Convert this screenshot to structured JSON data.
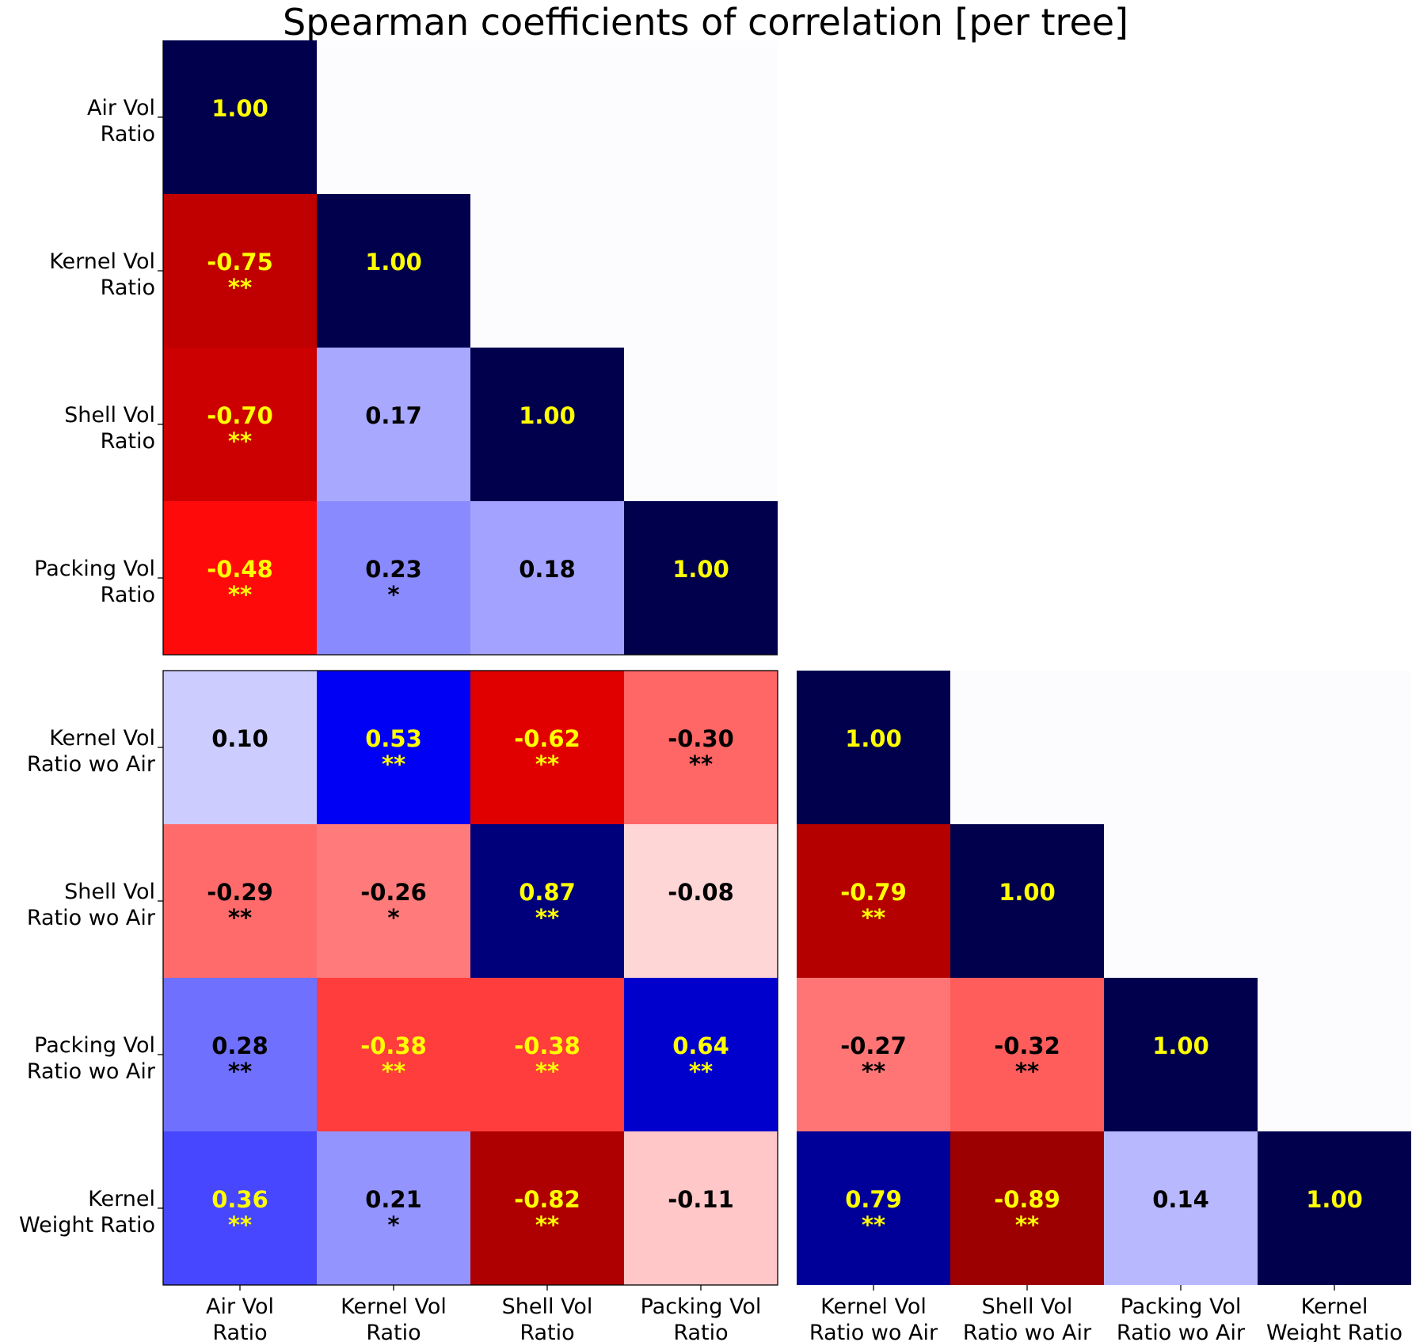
{
  "chart_data": {
    "type": "heatmap",
    "title": "Spearman coefficients of correlation [per tree]",
    "colormap": "seismic_r",
    "color_range": [
      -1,
      1
    ],
    "empty_cell_color": "#fcfcff",
    "label_colors": {
      "strong": "#ffff00",
      "weak": "#000000"
    },
    "panels": [
      {
        "id": "top-left",
        "row_labels": [
          "Air Vol\nRatio",
          "Kernel Vol\nRatio",
          "Shell Vol\nRatio",
          "Packing Vol\nRatio"
        ],
        "col_labels": [],
        "values": [
          [
            1.0,
            null,
            null,
            null
          ],
          [
            -0.75,
            1.0,
            null,
            null
          ],
          [
            -0.7,
            0.17,
            1.0,
            null
          ],
          [
            -0.48,
            0.23,
            0.18,
            1.0
          ]
        ],
        "labels": [
          [
            "1.00",
            "",
            "",
            ""
          ],
          [
            "-0.75",
            "1.00",
            "",
            ""
          ],
          [
            "-0.70",
            "0.17",
            "1.00",
            ""
          ],
          [
            "-0.48",
            "0.23",
            "0.18",
            "1.00"
          ]
        ],
        "significance": [
          [
            "",
            "",
            "",
            ""
          ],
          [
            "**",
            "",
            "",
            ""
          ],
          [
            "**",
            "",
            "",
            ""
          ],
          [
            "**",
            "*",
            "",
            ""
          ]
        ]
      },
      {
        "id": "bottom-left",
        "row_labels": [
          "Kernel Vol\nRatio wo Air",
          "Shell Vol\nRatio wo Air",
          "Packing Vol\nRatio wo Air",
          "Kernel\nWeight Ratio"
        ],
        "col_labels": [
          "Air Vol\nRatio",
          "Kernel Vol\nRatio",
          "Shell Vol\nRatio",
          "Packing Vol\nRatio"
        ],
        "values": [
          [
            0.1,
            0.53,
            -0.62,
            -0.3
          ],
          [
            -0.29,
            -0.26,
            0.87,
            -0.08
          ],
          [
            0.28,
            -0.38,
            -0.38,
            0.64
          ],
          [
            0.36,
            0.21,
            -0.82,
            -0.11
          ]
        ],
        "labels": [
          [
            "0.10",
            "0.53",
            "-0.62",
            "-0.30"
          ],
          [
            "-0.29",
            "-0.26",
            "0.87",
            "-0.08"
          ],
          [
            "0.28",
            "-0.38",
            "-0.38",
            "0.64"
          ],
          [
            "0.36",
            "0.21",
            "-0.82",
            "-0.11"
          ]
        ],
        "significance": [
          [
            "",
            "**",
            "**",
            "**"
          ],
          [
            "**",
            "*",
            "**",
            ""
          ],
          [
            "**",
            "**",
            "**",
            "**"
          ],
          [
            "**",
            "*",
            "**",
            ""
          ]
        ]
      },
      {
        "id": "bottom-right",
        "row_labels": [],
        "col_labels": [
          "Kernel Vol\nRatio wo Air",
          "Shell Vol\nRatio wo Air",
          "Packing Vol\nRatio wo Air",
          "Kernel\nWeight Ratio"
        ],
        "values": [
          [
            1.0,
            null,
            null,
            null
          ],
          [
            -0.79,
            1.0,
            null,
            null
          ],
          [
            -0.27,
            -0.32,
            1.0,
            null
          ],
          [
            0.79,
            -0.89,
            0.14,
            1.0
          ]
        ],
        "labels": [
          [
            "1.00",
            "",
            "",
            ""
          ],
          [
            "-0.79",
            "1.00",
            "",
            ""
          ],
          [
            "-0.27",
            "-0.32",
            "1.00",
            ""
          ],
          [
            "0.79",
            "-0.89",
            "0.14",
            "1.00"
          ]
        ],
        "significance": [
          [
            "",
            "",
            "",
            ""
          ],
          [
            "**",
            "",
            "",
            ""
          ],
          [
            "**",
            "**",
            "",
            ""
          ],
          [
            "**",
            "**",
            "",
            ""
          ]
        ]
      }
    ]
  }
}
